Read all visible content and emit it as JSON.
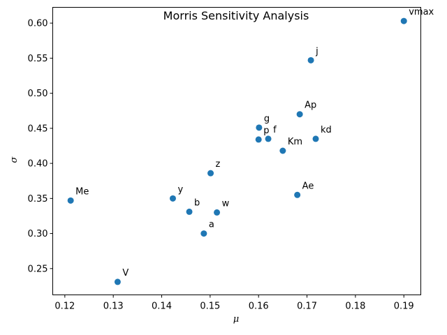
{
  "chart_data": {
    "type": "scatter",
    "title": "Morris Sensitivity Analysis",
    "xlabel": "μ",
    "ylabel": "σ",
    "xlim": [
      0.1175,
      0.1935
    ],
    "ylim": [
      0.2125,
      0.6225
    ],
    "xticks": [
      0.12,
      0.13,
      0.14,
      0.15,
      0.16,
      0.17,
      0.18,
      0.19
    ],
    "xtick_labels": [
      "0.12",
      "0.13",
      "0.14",
      "0.15",
      "0.16",
      "0.17",
      "0.18",
      "0.19"
    ],
    "yticks": [
      0.25,
      0.3,
      0.35,
      0.4,
      0.45,
      0.5,
      0.55,
      0.6
    ],
    "ytick_labels": [
      "0.25",
      "0.30",
      "0.35",
      "0.40",
      "0.45",
      "0.50",
      "0.55",
      "0.60"
    ],
    "grid": false,
    "marker_color": "#1f77b4",
    "points": [
      {
        "label": "vmax",
        "x": 0.19,
        "y": 0.603
      },
      {
        "label": "j",
        "x": 0.1708,
        "y": 0.547
      },
      {
        "label": "Ap",
        "x": 0.1685,
        "y": 0.47
      },
      {
        "label": "g",
        "x": 0.1601,
        "y": 0.451
      },
      {
        "label": "p",
        "x": 0.16,
        "y": 0.434
      },
      {
        "label": "f",
        "x": 0.162,
        "y": 0.435
      },
      {
        "label": "kd",
        "x": 0.1718,
        "y": 0.435
      },
      {
        "label": "Km",
        "x": 0.165,
        "y": 0.418
      },
      {
        "label": "z",
        "x": 0.1501,
        "y": 0.386
      },
      {
        "label": "Ae",
        "x": 0.168,
        "y": 0.355
      },
      {
        "label": "Me",
        "x": 0.1212,
        "y": 0.347
      },
      {
        "label": "y",
        "x": 0.1423,
        "y": 0.35
      },
      {
        "label": "b",
        "x": 0.1457,
        "y": 0.331
      },
      {
        "label": "w",
        "x": 0.1514,
        "y": 0.33
      },
      {
        "label": "a",
        "x": 0.1487,
        "y": 0.3
      },
      {
        "label": "V",
        "x": 0.1309,
        "y": 0.231
      }
    ]
  }
}
